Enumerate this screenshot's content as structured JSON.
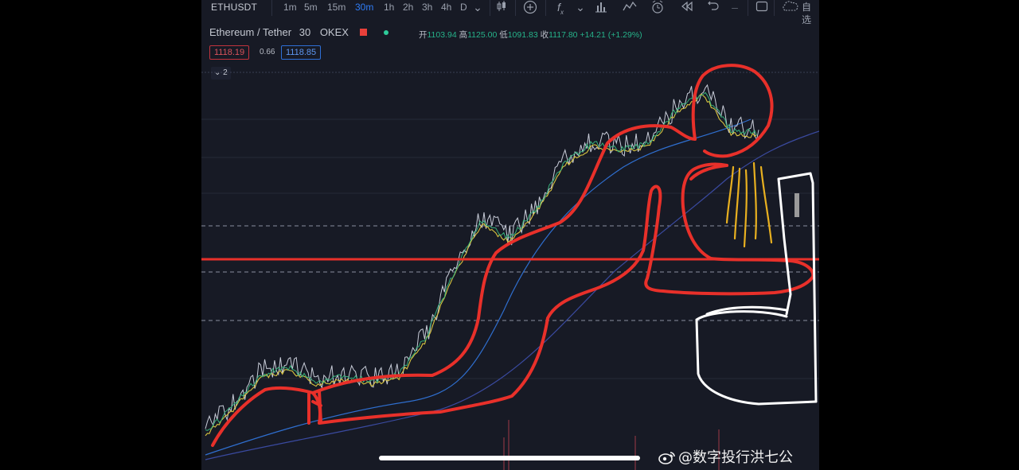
{
  "toolbar": {
    "symbol": "ETHUSDT",
    "timeframes": [
      "1m",
      "5m",
      "15m",
      "30m",
      "1h",
      "2h",
      "3h",
      "4h",
      "D"
    ],
    "active_timeframe": "30m",
    "language_label": "自选",
    "icons": [
      "candle-style-icon",
      "add-indicator-icon",
      "fx-icon",
      "bar-chart-icon",
      "line-chart-icon",
      "alert-icon",
      "replay-icon",
      "undo-icon",
      "fullscreen-icon",
      "cloud-icon"
    ]
  },
  "legend": {
    "title": "Ethereum / Tether",
    "interval": "30",
    "exchange": "OKEX",
    "open_label": "开",
    "open": "1103.94",
    "high_label": "高",
    "high": "1125.00",
    "low_label": "低",
    "low": "1091.83",
    "close_label": "收",
    "close": "1117.80",
    "change": "+14.21",
    "change_pct": "(+1.29%)"
  },
  "quote": {
    "bid": "1118.19",
    "spread": "0.66",
    "ask": "1118.85"
  },
  "indicators": {
    "toggle_label": "2"
  },
  "watermark": {
    "text": "@数字投行洪七公"
  },
  "colors": {
    "background": "#171a25",
    "annotation_red": "#e8302a",
    "annotation_white": "#ffffff",
    "annotation_yellow": "#e8b020",
    "accent_blue": "#2f7cf6"
  },
  "chart_data": {
    "type": "line",
    "series_description": "ETH/USDT 30m candles with moving averages, overlaid by hand-drawn annotation",
    "x": [
      0,
      5,
      10,
      15,
      20,
      25,
      30,
      35,
      40,
      45,
      50,
      55,
      60,
      65,
      70,
      75,
      80,
      85,
      90,
      95,
      100
    ],
    "values": [
      885,
      905,
      930,
      935,
      925,
      928,
      925,
      930,
      960,
      1010,
      1050,
      1035,
      1060,
      1095,
      1110,
      1105,
      1110,
      1135,
      1150,
      1120,
      1117.8
    ],
    "ylabel": "",
    "xlabel": ""
  }
}
